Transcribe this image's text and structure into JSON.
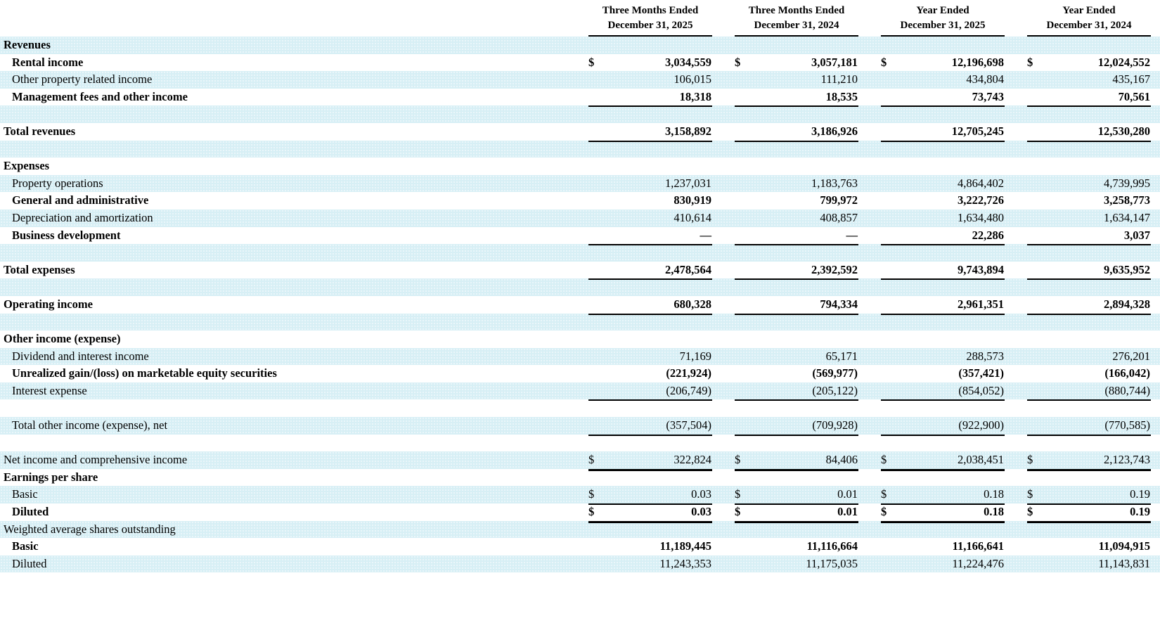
{
  "colors": {
    "row_shade": "#d7eff5",
    "text": "#000000",
    "rule": "#000000"
  },
  "table": {
    "column_headers": [
      {
        "line1": "Three Months Ended",
        "line2": "December 31, 2025"
      },
      {
        "line1": "Three Months Ended",
        "line2": "December 31, 2024"
      },
      {
        "line1": "Year Ended",
        "line2": "December 31, 2025"
      },
      {
        "line1": "Year Ended",
        "line2": "December 31, 2024"
      }
    ],
    "rows": [
      {
        "label": "Revenues",
        "indent": 0,
        "bold": true,
        "shade": true,
        "dollar": false,
        "underline": false,
        "values": null
      },
      {
        "label": "Rental income",
        "indent": 1,
        "bold": true,
        "shade": false,
        "dollar": true,
        "underline": false,
        "values": [
          "3,034,559",
          "3,057,181",
          "12,196,698",
          "12,024,552"
        ]
      },
      {
        "label": "Other property related income",
        "indent": 1,
        "bold": false,
        "shade": true,
        "dollar": false,
        "underline": false,
        "values": [
          "106,015",
          "111,210",
          "434,804",
          "435,167"
        ]
      },
      {
        "label": "Management fees and other income",
        "indent": 1,
        "bold": true,
        "shade": false,
        "dollar": false,
        "underline": true,
        "values": [
          "18,318",
          "18,535",
          "73,743",
          "70,561"
        ]
      },
      {
        "label": "",
        "indent": 0,
        "bold": false,
        "shade": true,
        "dollar": false,
        "underline": false,
        "values": null
      },
      {
        "label": "Total revenues",
        "indent": 0,
        "bold": true,
        "shade": false,
        "dollar": false,
        "underline": true,
        "values": [
          "3,158,892",
          "3,186,926",
          "12,705,245",
          "12,530,280"
        ]
      },
      {
        "label": "",
        "indent": 0,
        "bold": false,
        "shade": true,
        "dollar": false,
        "underline": false,
        "values": null
      },
      {
        "label": "Expenses",
        "indent": 0,
        "bold": true,
        "shade": false,
        "dollar": false,
        "underline": false,
        "values": null
      },
      {
        "label": "Property operations",
        "indent": 1,
        "bold": false,
        "shade": true,
        "dollar": false,
        "underline": false,
        "values": [
          "1,237,031",
          "1,183,763",
          "4,864,402",
          "4,739,995"
        ]
      },
      {
        "label": "General and administrative",
        "indent": 1,
        "bold": true,
        "shade": false,
        "dollar": false,
        "underline": false,
        "values": [
          "830,919",
          "799,972",
          "3,222,726",
          "3,258,773"
        ]
      },
      {
        "label": "Depreciation and amortization",
        "indent": 1,
        "bold": false,
        "shade": true,
        "dollar": false,
        "underline": false,
        "values": [
          "410,614",
          "408,857",
          "1,634,480",
          "1,634,147"
        ]
      },
      {
        "label": "Business development",
        "indent": 1,
        "bold": true,
        "shade": false,
        "dollar": false,
        "underline": true,
        "values": [
          "—",
          "—",
          "22,286",
          "3,037"
        ]
      },
      {
        "label": "",
        "indent": 0,
        "bold": false,
        "shade": true,
        "dollar": false,
        "underline": false,
        "values": null
      },
      {
        "label": "Total expenses",
        "indent": 0,
        "bold": true,
        "shade": false,
        "dollar": false,
        "underline": true,
        "values": [
          "2,478,564",
          "2,392,592",
          "9,743,894",
          "9,635,952"
        ]
      },
      {
        "label": "",
        "indent": 0,
        "bold": false,
        "shade": true,
        "dollar": false,
        "underline": false,
        "values": null
      },
      {
        "label": "Operating income",
        "indent": 0,
        "bold": true,
        "shade": false,
        "dollar": false,
        "underline": true,
        "values": [
          "680,328",
          "794,334",
          "2,961,351",
          "2,894,328"
        ]
      },
      {
        "label": "",
        "indent": 0,
        "bold": false,
        "shade": true,
        "dollar": false,
        "underline": false,
        "values": null
      },
      {
        "label": "Other income (expense)",
        "indent": 0,
        "bold": true,
        "shade": false,
        "dollar": false,
        "underline": false,
        "values": null
      },
      {
        "label": "Dividend and interest income",
        "indent": 1,
        "bold": false,
        "shade": true,
        "dollar": false,
        "underline": false,
        "values": [
          "71,169",
          "65,171",
          "288,573",
          "276,201"
        ]
      },
      {
        "label": "Unrealized gain/(loss) on marketable equity securities",
        "indent": 1,
        "bold": true,
        "shade": false,
        "dollar": false,
        "underline": false,
        "values": [
          "(221,924)",
          "(569,977)",
          "(357,421)",
          "(166,042)"
        ]
      },
      {
        "label": "Interest expense",
        "indent": 1,
        "bold": false,
        "shade": true,
        "dollar": false,
        "underline": true,
        "values": [
          "(206,749)",
          "(205,122)",
          "(854,052)",
          "(880,744)"
        ]
      },
      {
        "label": "",
        "indent": 0,
        "bold": false,
        "shade": false,
        "dollar": false,
        "underline": false,
        "values": null
      },
      {
        "label": "Total other income (expense), net",
        "indent": 1,
        "bold": false,
        "shade": true,
        "dollar": false,
        "underline": true,
        "values": [
          "(357,504)",
          "(709,928)",
          "(922,900)",
          "(770,585)"
        ]
      },
      {
        "label": "",
        "indent": 0,
        "bold": false,
        "shade": false,
        "dollar": false,
        "underline": false,
        "values": null
      },
      {
        "label": "Net income and comprehensive income",
        "indent": 0,
        "bold": false,
        "shade": true,
        "dollar": true,
        "underline": true,
        "thick": true,
        "values": [
          "322,824",
          "84,406",
          "2,038,451",
          "2,123,743"
        ]
      },
      {
        "label": "Earnings per share",
        "indent": 0,
        "bold": true,
        "shade": false,
        "dollar": false,
        "underline": false,
        "values": null
      },
      {
        "label": "Basic",
        "indent": 1,
        "bold": false,
        "shade": true,
        "dollar": true,
        "underline": true,
        "values": [
          "0.03",
          "0.01",
          "0.18",
          "0.19"
        ]
      },
      {
        "label": "Diluted",
        "indent": 1,
        "bold": true,
        "shade": false,
        "dollar": true,
        "underline": true,
        "thick": true,
        "values": [
          "0.03",
          "0.01",
          "0.18",
          "0.19"
        ]
      },
      {
        "label": "Weighted average shares outstanding",
        "indent": 0,
        "bold": false,
        "shade": true,
        "dollar": false,
        "underline": false,
        "values": null
      },
      {
        "label": "Basic",
        "indent": 1,
        "bold": true,
        "shade": false,
        "dollar": false,
        "underline": false,
        "values": [
          "11,189,445",
          "11,116,664",
          "11,166,641",
          "11,094,915"
        ]
      },
      {
        "label": "Diluted",
        "indent": 1,
        "bold": false,
        "shade": true,
        "dollar": false,
        "underline": false,
        "values": [
          "11,243,353",
          "11,175,035",
          "11,224,476",
          "11,143,831"
        ]
      }
    ]
  }
}
